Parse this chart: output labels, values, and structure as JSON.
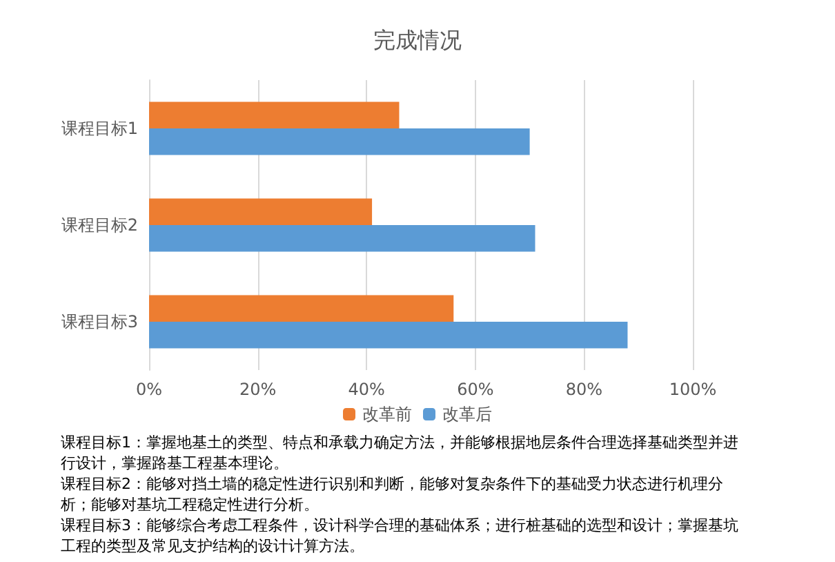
{
  "chart_data": {
    "type": "bar",
    "orientation": "horizontal",
    "title": "完成情况",
    "categories": [
      "课程目标1",
      "课程目标2",
      "课程目标3"
    ],
    "series": [
      {
        "name": "改革前",
        "color": "#ed7d31",
        "values": [
          46,
          41,
          56
        ]
      },
      {
        "name": "改革后",
        "color": "#5b9bd5",
        "values": [
          70,
          71,
          88
        ]
      }
    ],
    "xlim": [
      0,
      100
    ],
    "xticks": [
      {
        "value": 0,
        "label": "0%"
      },
      {
        "value": 20,
        "label": "20%"
      },
      {
        "value": 40,
        "label": "40%"
      },
      {
        "value": 60,
        "label": "60%"
      },
      {
        "value": 80,
        "label": "80%"
      },
      {
        "value": 100,
        "label": "100%"
      }
    ],
    "grid": "x",
    "legend": "bottom",
    "annotations": [
      "课程目标1：掌握地基土的类型、特点和承载力确定方法，并能够根据地层条件合理选择基础类型并进行设计，掌握路基工程基本理论。",
      "课程目标2：能够对挡土墙的稳定性进行识别和判断，能够对复杂条件下的基础受力状态进行机理分析；能够对基坑工程稳定性进行分析。",
      "课程目标3：能够综合考虑工程条件，设计科学合理的基础体系；进行桩基础的选型和设计；掌握基坑工程的类型及常见支护结构的设计计算方法。"
    ]
  }
}
